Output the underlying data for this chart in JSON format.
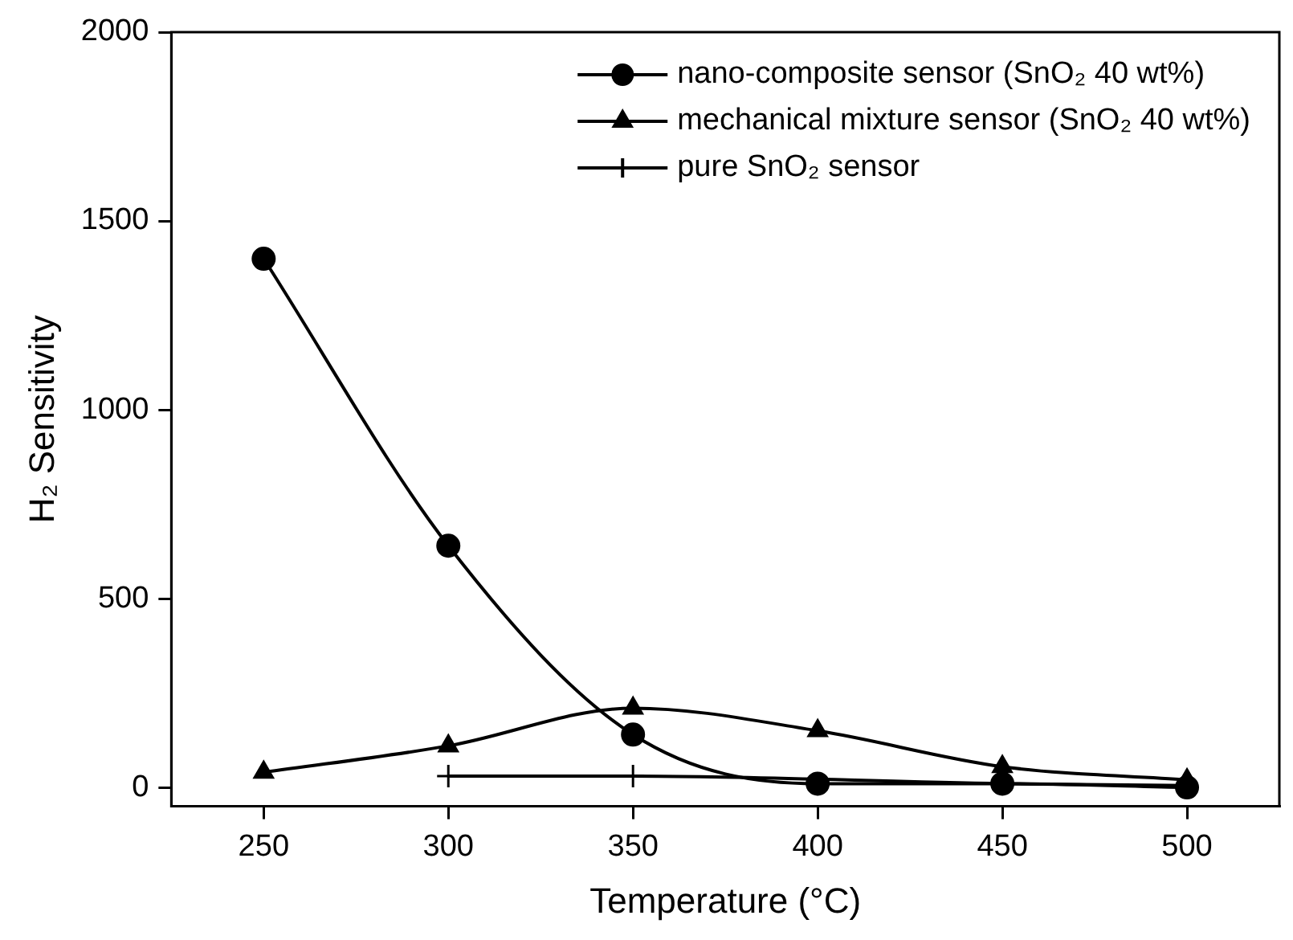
{
  "chart_data": {
    "type": "line",
    "xlabel": "Temperature (°C)",
    "ylabel": "H₂ Sensitivity",
    "x": [
      250,
      300,
      350,
      400,
      450,
      500
    ],
    "series": [
      {
        "name": "nano-composite sensor (SnO₂ 40 wt%)",
        "color": "#000000",
        "marker": "circle",
        "values": [
          1400,
          640,
          140,
          10,
          10,
          0
        ]
      },
      {
        "name": "mechanical mixture sensor (SnO₂ 40 wt%)",
        "color": "#000000",
        "marker": "triangle",
        "values": [
          40,
          110,
          210,
          150,
          55,
          20
        ]
      },
      {
        "name": "pure SnO₂ sensor",
        "color": "#000000",
        "marker": "cross",
        "values": [
          null,
          30,
          30,
          null,
          10,
          5
        ]
      }
    ],
    "xlim": [
      225,
      525
    ],
    "xticks": [
      250,
      300,
      350,
      400,
      450,
      500
    ],
    "ylim": [
      -50,
      2000
    ],
    "yticks": [
      0,
      500,
      1000,
      1500,
      2000
    ],
    "legend": "top right",
    "grid": false,
    "line_style": "solid"
  }
}
